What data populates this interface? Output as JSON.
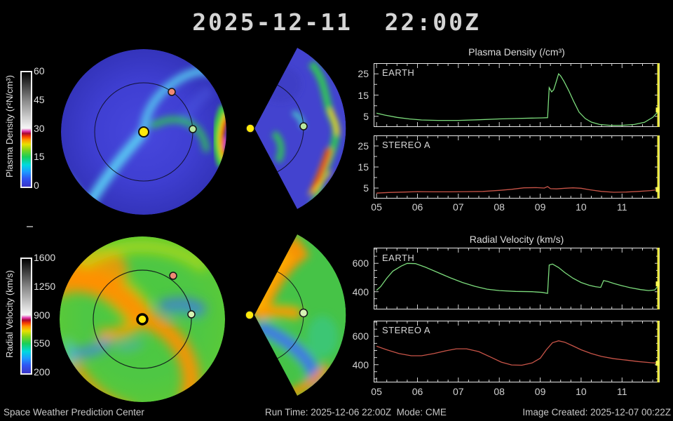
{
  "title": "2025-12-11  22:00Z",
  "colors": {
    "accent_yellow": "#ece93c",
    "line_green": "#7cdc7c",
    "line_red": "#c85448",
    "frame": "#e8e8e8",
    "tick": "#cfcfcf",
    "marker_yellow": "#ffff55"
  },
  "left_panel": {
    "density_colorbar": {
      "label": "Plasma Density (r²N/cm³)",
      "ticks": [
        "60",
        "45",
        "30",
        "15",
        "0"
      ]
    },
    "velocity_colorbar": {
      "label": "Radial Velocity (km/s)",
      "ticks": [
        "1600",
        "1250",
        "900",
        "550",
        "200"
      ]
    },
    "markers": {
      "sun": "sun",
      "earth": "earth",
      "stereo_a": "stereo-a"
    }
  },
  "footer": {
    "left": "Space Weather Prediction Center",
    "center": "Run Time: 2025-12-06 22:00Z  Mode: CME",
    "right": "Image Created: 2025-12-07 00:22Z"
  },
  "chart_data": [
    {
      "id": "density_earth",
      "type": "line",
      "group_title": "Plasma Density (/cm³)",
      "label": "EARTH",
      "color": "#7cdc7c",
      "xlim": [
        4.93,
        11.92
      ],
      "ylim": [
        0,
        30
      ],
      "yticks": [
        5,
        15,
        25
      ],
      "ytick_step": 5,
      "xticks": [
        5,
        6,
        7,
        8,
        9,
        10,
        11
      ],
      "xtick_labels": [
        "05",
        "06",
        "07",
        "08",
        "09",
        "10",
        "11"
      ],
      "show_xlabels": false,
      "x": [
        5.0,
        5.2,
        5.5,
        5.8,
        6.1,
        6.5,
        7.0,
        7.5,
        8.0,
        8.4,
        8.8,
        9.05,
        9.18,
        9.22,
        9.28,
        9.33,
        9.38,
        9.45,
        9.5,
        9.58,
        9.7,
        9.82,
        9.95,
        10.1,
        10.25,
        10.45,
        10.7,
        11.0,
        11.3,
        11.55,
        11.75,
        11.92
      ],
      "y": [
        6.5,
        5.6,
        4.5,
        3.8,
        3.3,
        3.1,
        3.1,
        3.4,
        3.8,
        4.0,
        4.2,
        4.3,
        4.4,
        18.5,
        16.5,
        17.5,
        20.5,
        25.0,
        24.0,
        21.5,
        17.0,
        12.0,
        7.0,
        4.0,
        2.3,
        1.2,
        0.8,
        0.8,
        1.2,
        2.2,
        4.5,
        8.0
      ]
    },
    {
      "id": "density_stereo_a",
      "type": "line",
      "group_title": "Plasma Density (/cm³)",
      "label": "STEREO A",
      "color": "#c85448",
      "xlim": [
        4.93,
        11.92
      ],
      "ylim": [
        0,
        30
      ],
      "yticks": [
        5,
        15,
        25
      ],
      "ytick_step": 5,
      "xticks": [
        5,
        6,
        7,
        8,
        9,
        10,
        11
      ],
      "xtick_labels": [
        "05",
        "06",
        "07",
        "08",
        "09",
        "10",
        "11"
      ],
      "show_xlabels": true,
      "x": [
        5.0,
        5.3,
        5.7,
        6.0,
        6.4,
        6.8,
        7.2,
        7.6,
        8.0,
        8.3,
        8.6,
        8.9,
        9.1,
        9.18,
        9.25,
        9.4,
        9.6,
        9.8,
        10.0,
        10.2,
        10.5,
        10.8,
        11.1,
        11.4,
        11.7,
        11.92
      ],
      "y": [
        2.6,
        2.9,
        3.1,
        3.3,
        3.2,
        3.2,
        3.3,
        3.4,
        3.9,
        4.4,
        5.1,
        5.2,
        5.0,
        5.7,
        4.7,
        4.6,
        4.9,
        5.1,
        4.9,
        4.2,
        3.4,
        3.0,
        3.1,
        3.4,
        3.8,
        4.3
      ]
    },
    {
      "id": "velocity_earth",
      "type": "line",
      "group_title": "Radial Velocity (km/s)",
      "label": "EARTH",
      "color": "#7cdc7c",
      "xlim": [
        4.93,
        11.92
      ],
      "ylim": [
        275,
        710
      ],
      "yticks": [
        400,
        600
      ],
      "ytick_step": 50,
      "xticks": [
        5,
        6,
        7,
        8,
        9,
        10,
        11
      ],
      "xtick_labels": [
        "05",
        "06",
        "07",
        "08",
        "09",
        "10",
        "11"
      ],
      "show_xlabels": false,
      "x": [
        5.0,
        5.1,
        5.25,
        5.4,
        5.6,
        5.75,
        5.95,
        6.2,
        6.5,
        6.8,
        7.1,
        7.4,
        7.7,
        8.0,
        8.4,
        8.8,
        9.05,
        9.18,
        9.22,
        9.3,
        9.45,
        9.6,
        9.8,
        10.0,
        10.2,
        10.35,
        10.48,
        10.55,
        10.65,
        10.8,
        11.0,
        11.2,
        11.45,
        11.65,
        11.8,
        11.92
      ],
      "y": [
        410,
        435,
        495,
        545,
        580,
        600,
        598,
        572,
        535,
        498,
        465,
        438,
        418,
        408,
        402,
        400,
        395,
        388,
        588,
        595,
        570,
        535,
        495,
        465,
        445,
        435,
        430,
        478,
        472,
        458,
        442,
        428,
        415,
        408,
        412,
        455
      ]
    },
    {
      "id": "velocity_stereo_a",
      "type": "line",
      "group_title": "Radial Velocity (km/s)",
      "label": "STEREO A",
      "color": "#c85448",
      "xlim": [
        4.93,
        11.92
      ],
      "ylim": [
        275,
        710
      ],
      "yticks": [
        400,
        600
      ],
      "ytick_step": 50,
      "xticks": [
        5,
        6,
        7,
        8,
        9,
        10,
        11
      ],
      "xtick_labels": [
        "05",
        "06",
        "07",
        "08",
        "09",
        "10",
        "11"
      ],
      "show_xlabels": true,
      "x": [
        5.0,
        5.25,
        5.55,
        5.85,
        6.1,
        6.4,
        6.7,
        6.95,
        7.2,
        7.5,
        7.8,
        8.05,
        8.3,
        8.55,
        8.8,
        9.0,
        9.15,
        9.3,
        9.45,
        9.6,
        9.8,
        10.0,
        10.25,
        10.5,
        10.8,
        11.1,
        11.4,
        11.7,
        11.92
      ],
      "y": [
        530,
        505,
        478,
        463,
        463,
        478,
        498,
        512,
        512,
        492,
        452,
        418,
        398,
        396,
        412,
        445,
        505,
        555,
        568,
        558,
        532,
        505,
        478,
        458,
        442,
        432,
        422,
        414,
        410
      ]
    }
  ],
  "group_titles": {
    "density": "Plasma Density (/cm³)",
    "velocity": "Radial Velocity (km/s)"
  }
}
